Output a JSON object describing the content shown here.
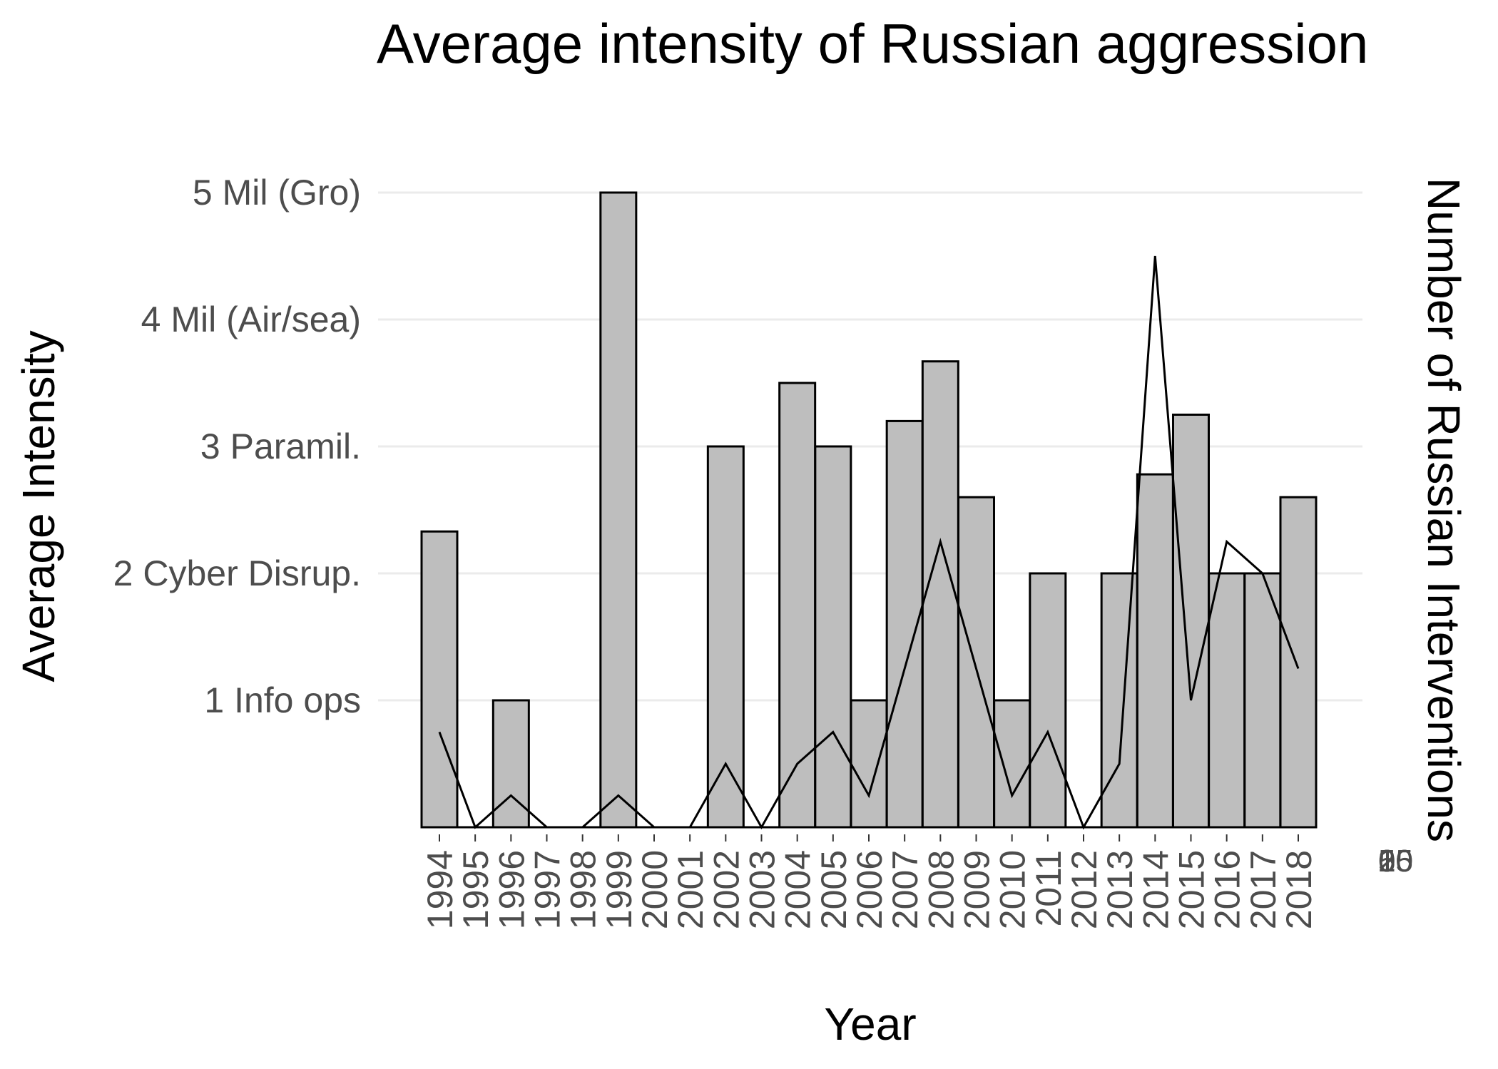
{
  "chart_data": {
    "type": "bar",
    "title": "Average intensity of Russian aggression",
    "xlabel": "Year",
    "ylabel": "Average Intensity",
    "y2label": "Number of Russian Interventions",
    "grid": true,
    "bar_fill": "#bebebe",
    "bar_stroke": "#000000",
    "line_color": "#000000",
    "gridline_color": "#ebebeb",
    "categories": [
      "1994",
      "1995",
      "1996",
      "1997",
      "1998",
      "1999",
      "2000",
      "2001",
      "2002",
      "2003",
      "2004",
      "2005",
      "2006",
      "2007",
      "2008",
      "2009",
      "2010",
      "2011",
      "2012",
      "2013",
      "2014",
      "2015",
      "2016",
      "2017",
      "2018"
    ],
    "ylim": [
      0,
      5
    ],
    "y_ticks": [
      {
        "value": 1,
        "label": "1 Info ops"
      },
      {
        "value": 2,
        "label": "2 Cyber Disrup."
      },
      {
        "value": 3,
        "label": "3 Paramil."
      },
      {
        "value": 4,
        "label": "4 Mil (Air/sea)"
      },
      {
        "value": 5,
        "label": "5 Mil (Gro)"
      }
    ],
    "y2lim": [
      0,
      20
    ],
    "y2_ticks": [
      {
        "value": 0,
        "label": "0"
      },
      {
        "value": 5,
        "label": "5"
      },
      {
        "value": 10,
        "label": "10"
      },
      {
        "value": 15,
        "label": "15"
      },
      {
        "value": 20,
        "label": "20"
      }
    ],
    "series": [
      {
        "name": "Average Intensity",
        "type": "bar",
        "values": [
          2.33,
          0,
          1,
          0,
          0,
          5,
          0,
          0,
          3,
          0,
          3.5,
          3,
          1,
          3.2,
          3.67,
          2.6,
          1,
          2,
          0,
          2,
          2.78,
          3.25,
          2,
          2,
          2.6
        ]
      },
      {
        "name": "Number of Russian Interventions",
        "type": "line",
        "values": [
          3,
          0,
          1,
          0,
          0,
          1,
          0,
          0,
          2,
          0,
          2,
          3,
          1,
          5,
          9,
          5,
          1,
          3,
          0,
          2,
          18,
          4,
          9,
          8,
          5
        ]
      }
    ]
  }
}
